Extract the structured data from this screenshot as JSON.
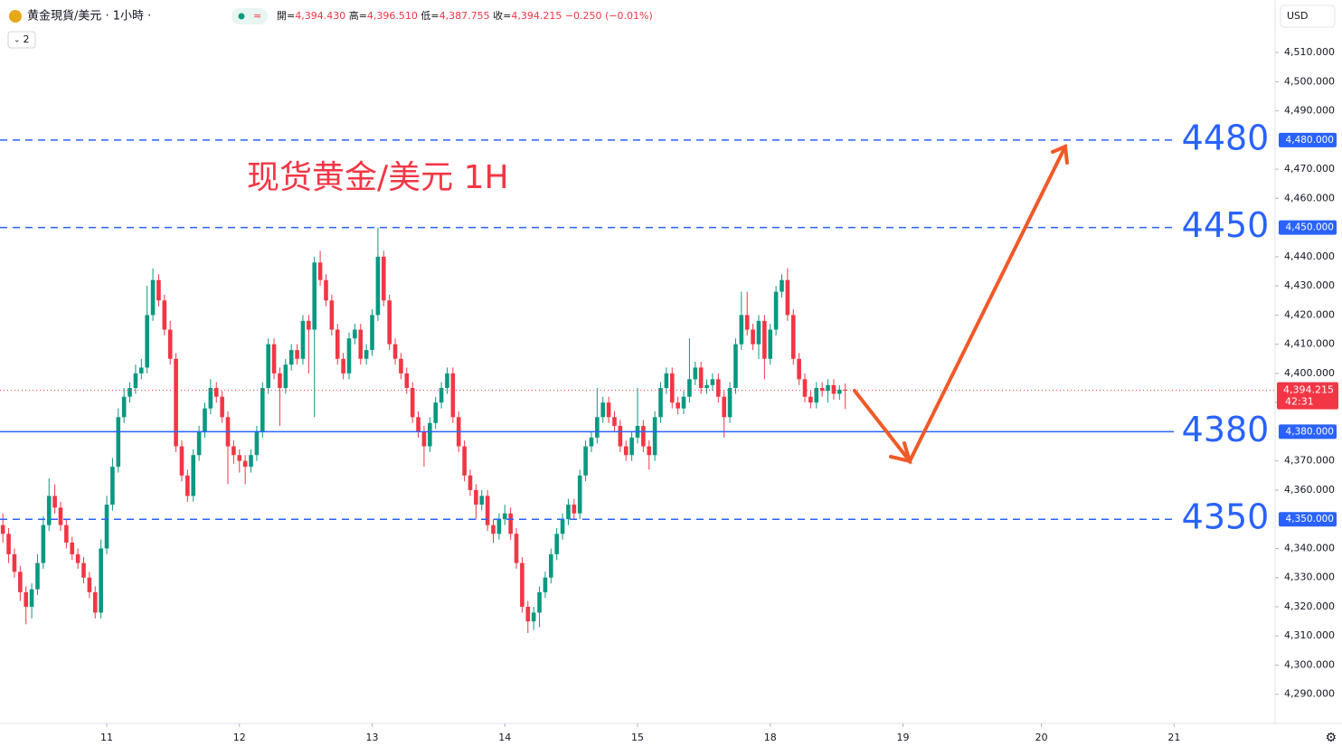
{
  "chart_data": {
    "type": "candlestick",
    "title": "黄金現貨/美元 · 1小時 ·",
    "badge": "2",
    "header_ohlc": [
      {
        "label": "開=",
        "value": "4,394.430"
      },
      {
        "label": "高=",
        "value": "4,396.510"
      },
      {
        "label": "低=",
        "value": "4,387.755"
      },
      {
        "label": "收=",
        "value": "4,394.215"
      }
    ],
    "header_change": "−0.250 (−0.01%)",
    "currency": "USD",
    "annotation": "现货黄金/美元 1H",
    "up_color": "#089981",
    "down_color": "#f23645",
    "level_color": "#2962ff",
    "ylim": [
      4280,
      4528
    ],
    "xlim": [
      -0.5,
      220.5
    ],
    "yticks": [
      {
        "value": 4290,
        "label": "4,290.000"
      },
      {
        "value": 4300,
        "label": "4,300.000"
      },
      {
        "value": 4310,
        "label": "4,310.000"
      },
      {
        "value": 4320,
        "label": "4,320.000"
      },
      {
        "value": 4330,
        "label": "4,330.000"
      },
      {
        "value": 4340,
        "label": "4,340.000"
      },
      {
        "value": 4360,
        "label": "4,360.000"
      },
      {
        "value": 4370,
        "label": "4,370.000"
      },
      {
        "value": 4390,
        "label": "4,390.000"
      },
      {
        "value": 4400,
        "label": "4,400.000"
      },
      {
        "value": 4410,
        "label": "4,410.000"
      },
      {
        "value": 4420,
        "label": "4,420.000"
      },
      {
        "value": 4430,
        "label": "4,430.000"
      },
      {
        "value": 4440,
        "label": "4,440.000"
      },
      {
        "value": 4460,
        "label": "4,460.000"
      },
      {
        "value": 4470,
        "label": "4,470.000"
      },
      {
        "value": 4490,
        "label": "4,490.000"
      },
      {
        "value": 4500,
        "label": "4,500.000"
      },
      {
        "value": 4510,
        "label": "4,510.000"
      }
    ],
    "xticks": [
      {
        "value": 18,
        "label": "11"
      },
      {
        "value": 41,
        "label": "12"
      },
      {
        "value": 64,
        "label": "13"
      },
      {
        "value": 87,
        "label": "14"
      },
      {
        "value": 110,
        "label": "15"
      },
      {
        "value": 133,
        "label": "18"
      },
      {
        "value": 156,
        "label": "19"
      },
      {
        "value": 180,
        "label": "20"
      },
      {
        "value": 203,
        "label": "21"
      }
    ],
    "levels": [
      {
        "value": 4480,
        "label": "4,480.000",
        "style": "dashed"
      },
      {
        "value": 4450,
        "label": "4,450.000",
        "style": "dashed"
      },
      {
        "value": 4380,
        "label": "4,380.000",
        "style": "solid"
      },
      {
        "value": 4350,
        "label": "4,350.000",
        "style": "dashed"
      }
    ],
    "last_price": {
      "value": 4394.215,
      "label": "4,394.215",
      "countdown": "42:31"
    },
    "ohlc": [
      [
        4348,
        4352,
        4342,
        4345
      ],
      [
        4345,
        4347,
        4335,
        4338
      ],
      [
        4338,
        4340,
        4330,
        4332
      ],
      [
        4332,
        4334,
        4322,
        4325
      ],
      [
        4325,
        4327,
        4314,
        4320
      ],
      [
        4320,
        4328,
        4316,
        4326
      ],
      [
        4326,
        4338,
        4324,
        4335
      ],
      [
        4335,
        4351,
        4333,
        4348
      ],
      [
        4348,
        4364,
        4346,
        4358
      ],
      [
        4358,
        4362,
        4352,
        4354
      ],
      [
        4354,
        4356,
        4346,
        4348
      ],
      [
        4348,
        4350,
        4340,
        4342
      ],
      [
        4342,
        4344,
        4336,
        4338
      ],
      [
        4338,
        4340,
        4333,
        4335
      ],
      [
        4335,
        4337,
        4328,
        4330
      ],
      [
        4330,
        4332,
        4323,
        4325
      ],
      [
        4325,
        4327,
        4316,
        4318
      ],
      [
        4318,
        4343,
        4316,
        4340
      ],
      [
        4340,
        4358,
        4338,
        4355
      ],
      [
        4355,
        4371,
        4353,
        4368
      ],
      [
        4368,
        4388,
        4366,
        4385
      ],
      [
        4385,
        4395,
        4383,
        4392
      ],
      [
        4392,
        4397,
        4390,
        4395
      ],
      [
        4395,
        4403,
        4393,
        4400
      ],
      [
        4400,
        4405,
        4398,
        4402
      ],
      [
        4402,
        4430,
        4400,
        4420
      ],
      [
        4420,
        4436,
        4418,
        4432
      ],
      [
        4432,
        4434,
        4423,
        4425
      ],
      [
        4425,
        4427,
        4413,
        4415
      ],
      [
        4415,
        4418,
        4403,
        4405
      ],
      [
        4405,
        4407,
        4373,
        4375
      ],
      [
        4375,
        4377,
        4363,
        4365
      ],
      [
        4365,
        4367,
        4356,
        4358
      ],
      [
        4358,
        4374,
        4356,
        4372
      ],
      [
        4372,
        4382,
        4370,
        4380
      ],
      [
        4380,
        4390,
        4378,
        4388
      ],
      [
        4388,
        4398,
        4386,
        4395
      ],
      [
        4395,
        4397,
        4390,
        4392
      ],
      [
        4392,
        4394,
        4383,
        4385
      ],
      [
        4385,
        4387,
        4362,
        4375
      ],
      [
        4375,
        4377,
        4369,
        4372
      ],
      [
        4372,
        4374,
        4366,
        4370
      ],
      [
        4370,
        4372,
        4362,
        4368
      ],
      [
        4368,
        4374,
        4366,
        4372
      ],
      [
        4372,
        4382,
        4370,
        4380
      ],
      [
        4380,
        4397,
        4378,
        4395
      ],
      [
        4395,
        4412,
        4393,
        4410
      ],
      [
        4410,
        4412,
        4398,
        4400
      ],
      [
        4400,
        4402,
        4382,
        4395
      ],
      [
        4395,
        4405,
        4393,
        4403
      ],
      [
        4403,
        4410,
        4401,
        4408
      ],
      [
        4408,
        4410,
        4403,
        4405
      ],
      [
        4405,
        4420,
        4403,
        4418
      ],
      [
        4418,
        4420,
        4400,
        4415
      ],
      [
        4415,
        4440,
        4385,
        4438
      ],
      [
        4438,
        4442,
        4430,
        4432
      ],
      [
        4432,
        4434,
        4423,
        4425
      ],
      [
        4425,
        4427,
        4413,
        4415
      ],
      [
        4415,
        4417,
        4403,
        4405
      ],
      [
        4405,
        4407,
        4398,
        4400
      ],
      [
        4400,
        4414,
        4398,
        4412
      ],
      [
        4412,
        4417,
        4410,
        4415
      ],
      [
        4415,
        4417,
        4403,
        4405
      ],
      [
        4405,
        4410,
        4403,
        4408
      ],
      [
        4408,
        4422,
        4406,
        4420
      ],
      [
        4420,
        4450,
        4418,
        4440
      ],
      [
        4440,
        4442,
        4423,
        4425
      ],
      [
        4425,
        4427,
        4408,
        4410
      ],
      [
        4410,
        4412,
        4403,
        4405
      ],
      [
        4405,
        4407,
        4398,
        4400
      ],
      [
        4400,
        4402,
        4393,
        4395
      ],
      [
        4395,
        4397,
        4383,
        4385
      ],
      [
        4385,
        4387,
        4378,
        4380
      ],
      [
        4380,
        4382,
        4368,
        4375
      ],
      [
        4375,
        4385,
        4373,
        4383
      ],
      [
        4383,
        4392,
        4381,
        4390
      ],
      [
        4390,
        4397,
        4388,
        4395
      ],
      [
        4395,
        4402,
        4393,
        4400
      ],
      [
        4400,
        4402,
        4383,
        4385
      ],
      [
        4385,
        4387,
        4373,
        4375
      ],
      [
        4375,
        4377,
        4363,
        4365
      ],
      [
        4365,
        4367,
        4358,
        4360
      ],
      [
        4360,
        4362,
        4350,
        4355
      ],
      [
        4355,
        4360,
        4353,
        4358
      ],
      [
        4358,
        4360,
        4346,
        4348
      ],
      [
        4348,
        4350,
        4342,
        4345
      ],
      [
        4345,
        4352,
        4343,
        4350
      ],
      [
        4350,
        4355,
        4348,
        4352
      ],
      [
        4352,
        4354,
        4343,
        4345
      ],
      [
        4345,
        4347,
        4333,
        4335
      ],
      [
        4335,
        4337,
        4318,
        4320
      ],
      [
        4320,
        4322,
        4311,
        4315
      ],
      [
        4315,
        4320,
        4312,
        4318
      ],
      [
        4318,
        4327,
        4313,
        4325
      ],
      [
        4325,
        4332,
        4323,
        4330
      ],
      [
        4330,
        4340,
        4328,
        4338
      ],
      [
        4338,
        4347,
        4336,
        4345
      ],
      [
        4345,
        4352,
        4343,
        4350
      ],
      [
        4350,
        4357,
        4348,
        4355
      ],
      [
        4355,
        4357,
        4350,
        4352
      ],
      [
        4352,
        4367,
        4350,
        4365
      ],
      [
        4365,
        4377,
        4363,
        4375
      ],
      [
        4375,
        4380,
        4373,
        4378
      ],
      [
        4378,
        4395,
        4376,
        4385
      ],
      [
        4385,
        4392,
        4383,
        4390
      ],
      [
        4390,
        4392,
        4383,
        4385
      ],
      [
        4385,
        4387,
        4380,
        4382
      ],
      [
        4382,
        4384,
        4373,
        4375
      ],
      [
        4375,
        4377,
        4370,
        4372
      ],
      [
        4372,
        4380,
        4370,
        4378
      ],
      [
        4378,
        4395,
        4376,
        4382
      ],
      [
        4382,
        4384,
        4373,
        4375
      ],
      [
        4375,
        4377,
        4367,
        4372
      ],
      [
        4372,
        4387,
        4370,
        4385
      ],
      [
        4385,
        4397,
        4383,
        4395
      ],
      [
        4395,
        4402,
        4393,
        4400
      ],
      [
        4400,
        4402,
        4388,
        4390
      ],
      [
        4390,
        4392,
        4386,
        4388
      ],
      [
        4388,
        4394,
        4386,
        4392
      ],
      [
        4392,
        4412,
        4390,
        4398
      ],
      [
        4398,
        4404,
        4396,
        4402
      ],
      [
        4402,
        4404,
        4393,
        4395
      ],
      [
        4395,
        4398,
        4393,
        4396
      ],
      [
        4396,
        4400,
        4394,
        4398
      ],
      [
        4398,
        4400,
        4390,
        4392
      ],
      [
        4392,
        4394,
        4378,
        4385
      ],
      [
        4385,
        4397,
        4383,
        4395
      ],
      [
        4395,
        4412,
        4393,
        4410
      ],
      [
        4410,
        4428,
        4408,
        4420
      ],
      [
        4420,
        4428,
        4413,
        4415
      ],
      [
        4415,
        4417,
        4408,
        4410
      ],
      [
        4410,
        4420,
        4405,
        4418
      ],
      [
        4418,
        4420,
        4398,
        4405
      ],
      [
        4405,
        4417,
        4403,
        4415
      ],
      [
        4415,
        4430,
        4413,
        4428
      ],
      [
        4428,
        4434,
        4426,
        4432
      ],
      [
        4432,
        4436,
        4418,
        4420
      ],
      [
        4420,
        4422,
        4403,
        4405
      ],
      [
        4405,
        4407,
        4396,
        4398
      ],
      [
        4398,
        4400,
        4390,
        4392
      ],
      [
        4392,
        4394,
        4388,
        4390
      ],
      [
        4390,
        4397,
        4388,
        4395
      ],
      [
        4395,
        4397,
        4392,
        4394
      ],
      [
        4394,
        4398,
        4390,
        4396
      ],
      [
        4396,
        4398,
        4391,
        4393
      ],
      [
        4393,
        4396,
        4391,
        4394.43
      ],
      [
        4394.43,
        4396.51,
        4387.755,
        4394.215
      ]
    ]
  }
}
